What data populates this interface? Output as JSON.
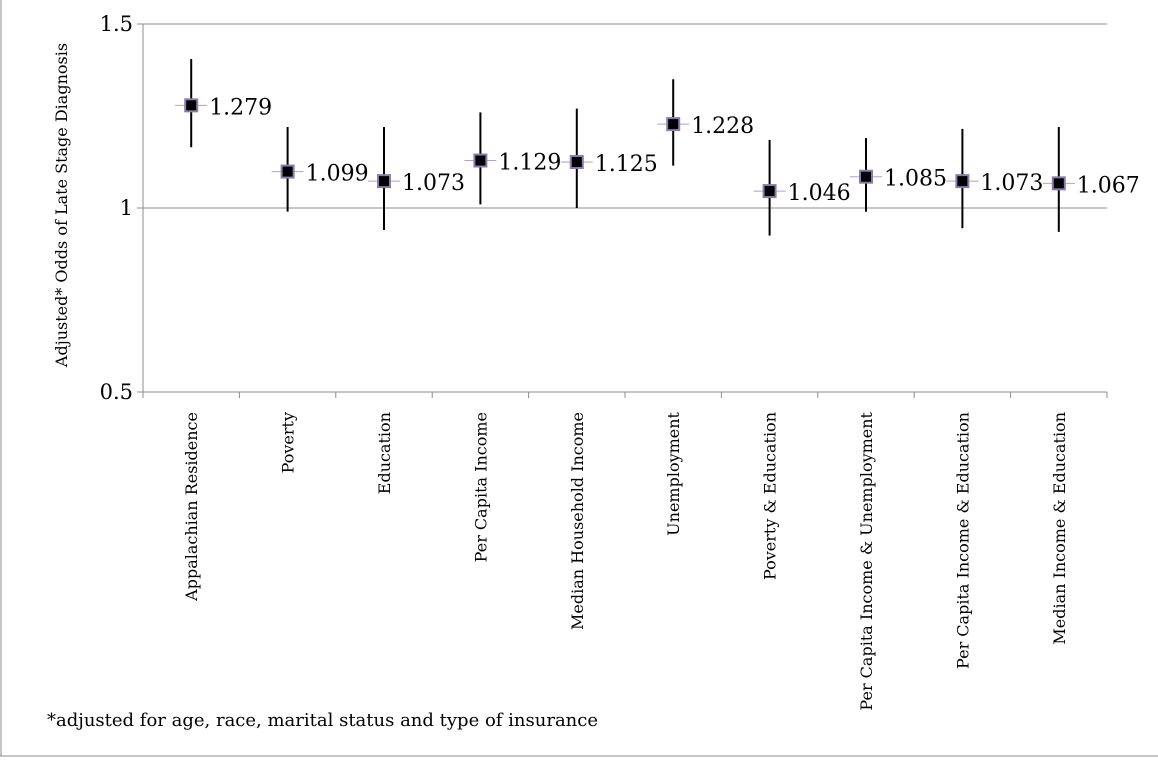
{
  "chart_data": {
    "type": "scatter",
    "subtype": "point-estimate-with-error-bars",
    "title": "",
    "xlabel": "",
    "ylabel": "Adjusted* Odds of Late Stage Diagnosis",
    "ylim": [
      0.5,
      1.5
    ],
    "yticks": [
      "0.5",
      "1",
      "1.5"
    ],
    "y_gridlines": [
      1,
      1.5
    ],
    "categories": [
      "Appalachian Residence",
      "Poverty",
      "Education",
      "Per Capita Income",
      "Median Household Income",
      "Unemployment",
      "Poverty & Education",
      "Per Capita Income & Unemployment",
      "Per Capita Income & Education",
      "Median Income & Education"
    ],
    "values": [
      1.279,
      1.099,
      1.073,
      1.129,
      1.125,
      1.228,
      1.046,
      1.085,
      1.073,
      1.067
    ],
    "data_labels": [
      "1.279",
      "1.099",
      "1.073",
      "1.129",
      "1.125",
      "1.228",
      "1.046",
      "1.085",
      "1.073",
      "1.067"
    ],
    "error_low": [
      1.165,
      0.99,
      0.94,
      1.01,
      1.0,
      1.115,
      0.925,
      0.99,
      0.945,
      0.935
    ],
    "error_high": [
      1.405,
      1.22,
      1.22,
      1.26,
      1.27,
      1.35,
      1.185,
      1.19,
      1.215,
      1.22
    ],
    "footnote": "*adjusted for age, race, marital status and type of insurance",
    "legend": "none",
    "grid": true,
    "colors": {
      "marker_fill": "#000000",
      "marker_outline": "#8b7bb0",
      "error_bar": "#000000",
      "axis": "#8c8c8c",
      "gridline": "#8c8c8c"
    }
  }
}
